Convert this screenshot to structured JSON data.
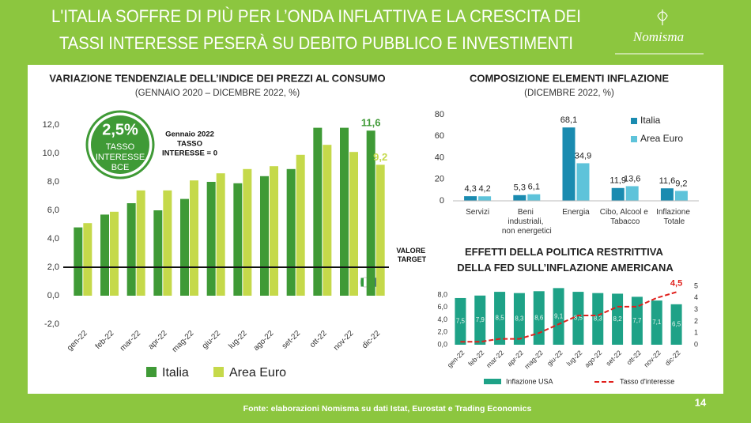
{
  "title_lines": [
    "L'ITALIA SOFFRE DI PIÙ PER L’ONDA INFLATTIVA E LA CRESCITA DEI",
    "TASSI INTERESSE PESERÀ SU DEBITO PUBBLICO E INVESTIMENTI"
  ],
  "logo": "Nomisma",
  "source": "Fonte: elaborazioni Nomisma su dati Istat, Eurostat e Trading Economics",
  "page_number": "14",
  "chart_data": [
    {
      "type": "bar",
      "title": "VARIAZIONE TENDENZIALE DELL’INDICE DEI PREZZI AL CONSUMO",
      "subtitle": "(GENNAIO 2020 – DICEMBRE 2022, %)",
      "categories": [
        "gen-22",
        "feb-22",
        "mar-22",
        "apr-22",
        "mag-22",
        "giu-22",
        "lug-22",
        "ago-22",
        "set-22",
        "ott-22",
        "nov-22",
        "dic-22"
      ],
      "series": [
        {
          "name": "Italia",
          "color": "#3f9a36",
          "values": [
            4.8,
            5.7,
            6.5,
            6.0,
            6.8,
            8.0,
            7.9,
            8.4,
            8.9,
            11.8,
            11.8,
            11.6
          ],
          "value_labels": [
            null,
            null,
            null,
            null,
            null,
            null,
            null,
            null,
            null,
            null,
            null,
            "11,6"
          ]
        },
        {
          "name": "Area Euro",
          "color": "#c5d94a",
          "values": [
            5.1,
            5.9,
            7.4,
            7.4,
            8.1,
            8.6,
            8.9,
            9.1,
            9.9,
            10.6,
            10.1,
            9.2
          ],
          "value_labels": [
            null,
            null,
            null,
            null,
            null,
            null,
            null,
            null,
            null,
            null,
            null,
            "9,2"
          ]
        }
      ],
      "ylim": [
        -2,
        13
      ],
      "yticks": [
        {
          "value": -2,
          "label": "-2,0"
        },
        {
          "value": 0,
          "label": "0,0"
        },
        {
          "value": 2,
          "label": "2,0"
        },
        {
          "value": 4,
          "label": "4,0"
        },
        {
          "value": 6,
          "label": "6,0"
        },
        {
          "value": 8,
          "label": "8,0"
        },
        {
          "value": 10,
          "label": "10,0"
        },
        {
          "value": 12,
          "label": "12,0"
        }
      ],
      "grid": false,
      "legend": "bottom",
      "reference_line": {
        "value": 2,
        "label": "VALORE TARGET"
      },
      "badge": {
        "label": "2,5%",
        "lines": [
          "TASSO",
          "INTERESSE",
          "BCE"
        ]
      },
      "note_lines": [
        "Gennaio 2022",
        "TASSO",
        "INTERESSE = 0"
      ]
    },
    {
      "type": "bar",
      "title": "COMPOSIZIONE ELEMENTI INFLAZIONE",
      "subtitle": "(DICEMBRE 2022, %)",
      "categories": [
        "Servizi",
        "Beni industriali, non energetici",
        "Energia",
        "Cibo, Alcool e Tabacco",
        "Inflazione Totale"
      ],
      "series": [
        {
          "name": "Italia",
          "color": "#1a8bb0",
          "values": [
            4.3,
            5.3,
            68.1,
            11.9,
            11.6
          ],
          "value_labels": [
            "4,3",
            "5,3",
            "68,1",
            "11,9",
            "11,6"
          ]
        },
        {
          "name": "Area Euro",
          "color": "#5ec3da",
          "values": [
            4.2,
            6.1,
            34.9,
            13.6,
            9.2
          ],
          "value_labels": [
            "4,2",
            "6,1",
            "34,9",
            "13,6",
            "9,2"
          ]
        }
      ],
      "ylim": [
        0,
        80
      ],
      "yticks": [
        0,
        20,
        40,
        60,
        80
      ],
      "grid": false,
      "legend": "right"
    },
    {
      "type": "bar",
      "title": "EFFETTI DELLA POLITICA RESTRITTIVA DELLA FED SULL’INFLAZIONE AMERICANA",
      "categories": [
        "gen-22",
        "feb-22",
        "mar-22",
        "apr-22",
        "mag-22",
        "giu-22",
        "lug-22",
        "ago-22",
        "set-22",
        "ott-22",
        "nov-22",
        "dic-22"
      ],
      "series": [
        {
          "name": "Inflazione USA",
          "color": "#1ea287",
          "values": [
            7.5,
            7.9,
            8.5,
            8.3,
            8.6,
            9.1,
            8.5,
            8.3,
            8.2,
            7.7,
            7.1,
            6.5
          ],
          "value_labels": [
            "7,5",
            "7,9",
            "8,5",
            "8,3",
            "8,6",
            "9,1",
            "8,5",
            "8,3",
            "8,2",
            "7,7",
            "7,1",
            "6,5"
          ]
        },
        {
          "name": "Tasso d'interesse",
          "type": "line",
          "axis": "y2",
          "color": "#e0201c",
          "values": [
            0.25,
            0.25,
            0.5,
            0.5,
            1,
            1.75,
            2.5,
            2.5,
            3.25,
            3.25,
            4,
            4.5
          ],
          "value_labels": [
            null,
            null,
            null,
            null,
            null,
            null,
            null,
            null,
            null,
            null,
            null,
            "4,5"
          ]
        }
      ],
      "ylim": [
        0,
        9.4
      ],
      "yticks": [
        {
          "value": 0,
          "label": "0,0"
        },
        {
          "value": 2,
          "label": "2,0"
        },
        {
          "value": 4,
          "label": "4,0"
        },
        {
          "value": 6,
          "label": "6,0"
        },
        {
          "value": 8,
          "label": "8,0"
        }
      ],
      "y2lim": [
        0,
        5
      ],
      "y2ticks": [
        0,
        1,
        2,
        3,
        4,
        5
      ],
      "grid": false,
      "legend": "bottom"
    }
  ]
}
